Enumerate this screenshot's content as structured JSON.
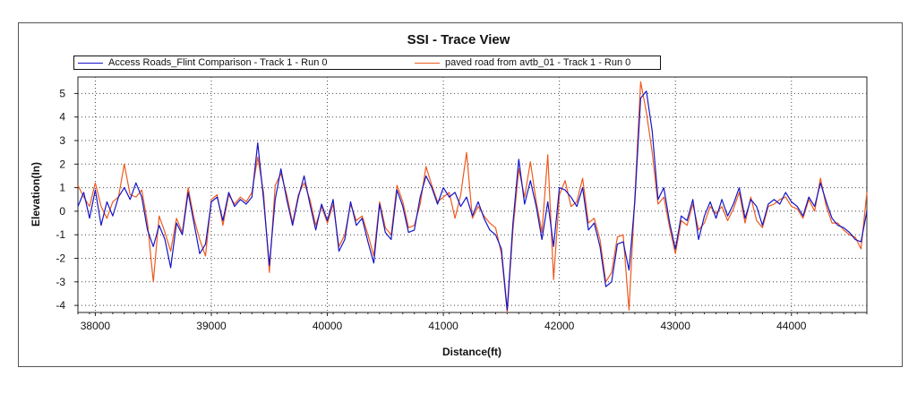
{
  "chart_data": {
    "type": "line",
    "title": "SSI - Trace View",
    "xlabel": "Distance(ft)",
    "ylabel": "Elevation(In)",
    "xlim": [
      37850,
      44650
    ],
    "ylim": [
      -4.3,
      5.7
    ],
    "xticks": [
      38000,
      39000,
      40000,
      41000,
      42000,
      43000,
      44000
    ],
    "yticks": [
      -4,
      -3,
      -2,
      -1,
      0,
      1,
      2,
      3,
      4,
      5
    ],
    "grid": true,
    "legend_position": "top-left",
    "series": [
      {
        "name": "Access Roads_Flint Comparison - Track 1 - Run 0",
        "color": "#1515c8",
        "x": [
          37850,
          37900,
          37950,
          38000,
          38050,
          38100,
          38150,
          38200,
          38250,
          38300,
          38350,
          38400,
          38450,
          38500,
          38550,
          38600,
          38650,
          38700,
          38750,
          38800,
          38850,
          38900,
          38950,
          39000,
          39050,
          39100,
          39150,
          39200,
          39250,
          39300,
          39350,
          39400,
          39450,
          39500,
          39550,
          39600,
          39650,
          39700,
          39750,
          39800,
          39850,
          39900,
          39950,
          40000,
          40050,
          40100,
          40150,
          40200,
          40250,
          40300,
          40350,
          40400,
          40450,
          40500,
          40550,
          40600,
          40650,
          40700,
          40750,
          40800,
          40850,
          40900,
          40950,
          41000,
          41050,
          41100,
          41150,
          41200,
          41250,
          41300,
          41350,
          41400,
          41450,
          41500,
          41550,
          41600,
          41650,
          41700,
          41750,
          41800,
          41850,
          41900,
          41950,
          42000,
          42050,
          42100,
          42150,
          42200,
          42250,
          42300,
          42350,
          42400,
          42450,
          42500,
          42550,
          42600,
          42650,
          42700,
          42750,
          42800,
          42850,
          42900,
          42950,
          43000,
          43050,
          43100,
          43150,
          43200,
          43250,
          43300,
          43350,
          43400,
          43450,
          43500,
          43550,
          43600,
          43650,
          43700,
          43750,
          43800,
          43850,
          43900,
          43950,
          44000,
          44050,
          44100,
          44150,
          44200,
          44250,
          44300,
          44350,
          44400,
          44450,
          44500,
          44550,
          44600,
          44650
        ],
        "y": [
          0.2,
          0.8,
          -0.3,
          0.9,
          -0.6,
          0.4,
          -0.2,
          0.6,
          1.0,
          0.5,
          1.2,
          0.6,
          -0.8,
          -1.5,
          -0.6,
          -1.2,
          -2.4,
          -0.5,
          -1.0,
          0.8,
          -0.5,
          -1.8,
          -1.4,
          0.4,
          0.6,
          -0.4,
          0.8,
          0.2,
          0.5,
          0.3,
          0.6,
          2.9,
          0.5,
          -2.3,
          0.5,
          1.8,
          0.5,
          -0.6,
          0.6,
          1.5,
          0.3,
          -0.8,
          0.3,
          -0.4,
          0.5,
          -1.7,
          -1.2,
          0.4,
          -0.6,
          -0.3,
          -1.3,
          -2.2,
          0.3,
          -0.9,
          -1.2,
          0.9,
          0.2,
          -0.9,
          -0.8,
          0.6,
          1.5,
          1.0,
          0.3,
          1.0,
          0.6,
          0.8,
          0.2,
          0.6,
          -0.2,
          0.4,
          -0.3,
          -0.8,
          -1.0,
          -1.6,
          -4.2,
          -0.5,
          2.2,
          0.3,
          1.3,
          0.2,
          -1.2,
          0.4,
          -1.5,
          1.0,
          0.9,
          0.6,
          0.2,
          1.0,
          -0.8,
          -0.5,
          -1.5,
          -3.2,
          -3.0,
          -1.4,
          -1.3,
          -2.5,
          0.4,
          4.8,
          5.1,
          3.4,
          0.5,
          1.0,
          -0.5,
          -1.6,
          -0.2,
          -0.4,
          0.5,
          -1.2,
          -0.2,
          0.4,
          -0.3,
          0.5,
          -0.2,
          0.3,
          1.0,
          -0.3,
          0.5,
          0.2,
          -0.6,
          0.3,
          0.5,
          0.3,
          0.8,
          0.4,
          0.2,
          -0.2,
          0.6,
          0.2,
          1.2,
          0.4,
          -0.3,
          -0.6,
          -0.7,
          -0.9,
          -1.2,
          -1.3,
          0.0
        ]
      },
      {
        "name": "paved road from avtb_01 - Track 1 - Run 0",
        "color": "#ee5a1f",
        "x": [
          37850,
          37900,
          37950,
          38000,
          38050,
          38100,
          38150,
          38200,
          38250,
          38300,
          38350,
          38400,
          38450,
          38500,
          38550,
          38600,
          38650,
          38700,
          38750,
          38800,
          38850,
          38900,
          38950,
          39000,
          39050,
          39100,
          39150,
          39200,
          39250,
          39300,
          39350,
          39400,
          39450,
          39500,
          39550,
          39600,
          39650,
          39700,
          39750,
          39800,
          39850,
          39900,
          39950,
          40000,
          40050,
          40100,
          40150,
          40200,
          40250,
          40300,
          40350,
          40400,
          40450,
          40500,
          40550,
          40600,
          40650,
          40700,
          40750,
          40800,
          40850,
          40900,
          40950,
          41000,
          41050,
          41100,
          41150,
          41200,
          41250,
          41300,
          41350,
          41400,
          41450,
          41500,
          41550,
          41600,
          41650,
          41700,
          41750,
          41800,
          41850,
          41900,
          41950,
          42000,
          42050,
          42100,
          42150,
          42200,
          42250,
          42300,
          42350,
          42400,
          42450,
          42500,
          42550,
          42600,
          42650,
          42700,
          42750,
          42800,
          42850,
          42900,
          42950,
          43000,
          43050,
          43100,
          43150,
          43200,
          43250,
          43300,
          43350,
          43400,
          43450,
          43500,
          43550,
          43600,
          43650,
          43700,
          43750,
          43800,
          43850,
          43900,
          43950,
          44000,
          44050,
          44100,
          44150,
          44200,
          44250,
          44300,
          44350,
          44400,
          44450,
          44500,
          44550,
          44600,
          44650
        ],
        "y": [
          1.1,
          0.6,
          0.2,
          1.2,
          0.2,
          -0.3,
          0.4,
          0.6,
          2.0,
          0.7,
          0.6,
          0.9,
          -0.5,
          -3.0,
          -0.2,
          -0.9,
          -1.7,
          -0.3,
          -0.9,
          1.0,
          -0.3,
          -1.2,
          -1.9,
          0.5,
          0.7,
          -0.6,
          0.7,
          0.3,
          0.6,
          0.4,
          0.8,
          2.3,
          0.8,
          -2.6,
          1.1,
          1.6,
          0.7,
          -0.5,
          0.7,
          1.2,
          0.5,
          -0.6,
          0.2,
          -0.5,
          0.3,
          -1.5,
          -1.0,
          0.3,
          -0.4,
          -0.2,
          -1.0,
          -1.9,
          0.4,
          -0.7,
          -1.0,
          1.1,
          0.4,
          -0.7,
          -0.6,
          0.3,
          1.9,
          1.1,
          0.4,
          0.6,
          0.8,
          -0.3,
          0.7,
          2.5,
          -0.3,
          0.2,
          -0.2,
          -0.5,
          -0.7,
          -1.8,
          -4.3,
          -0.8,
          1.8,
          0.6,
          2.1,
          0.4,
          -0.9,
          2.4,
          -2.9,
          0.7,
          1.3,
          0.2,
          0.4,
          1.4,
          -0.5,
          -0.3,
          -1.2,
          -3.0,
          -2.6,
          -1.1,
          -1.0,
          -4.2,
          0.6,
          5.5,
          4.2,
          2.5,
          0.3,
          0.6,
          -0.7,
          -1.8,
          -0.4,
          -0.6,
          0.3,
          -0.8,
          -0.5,
          0.2,
          -0.1,
          0.2,
          -0.4,
          0.1,
          0.8,
          -0.5,
          0.6,
          -0.4,
          -0.7,
          0.2,
          0.3,
          0.5,
          0.6,
          0.2,
          0.1,
          -0.3,
          0.5,
          0.0,
          1.4,
          0.2,
          -0.5,
          -0.5,
          -0.8,
          -1.0,
          -1.1,
          -1.6,
          0.8
        ]
      }
    ]
  }
}
